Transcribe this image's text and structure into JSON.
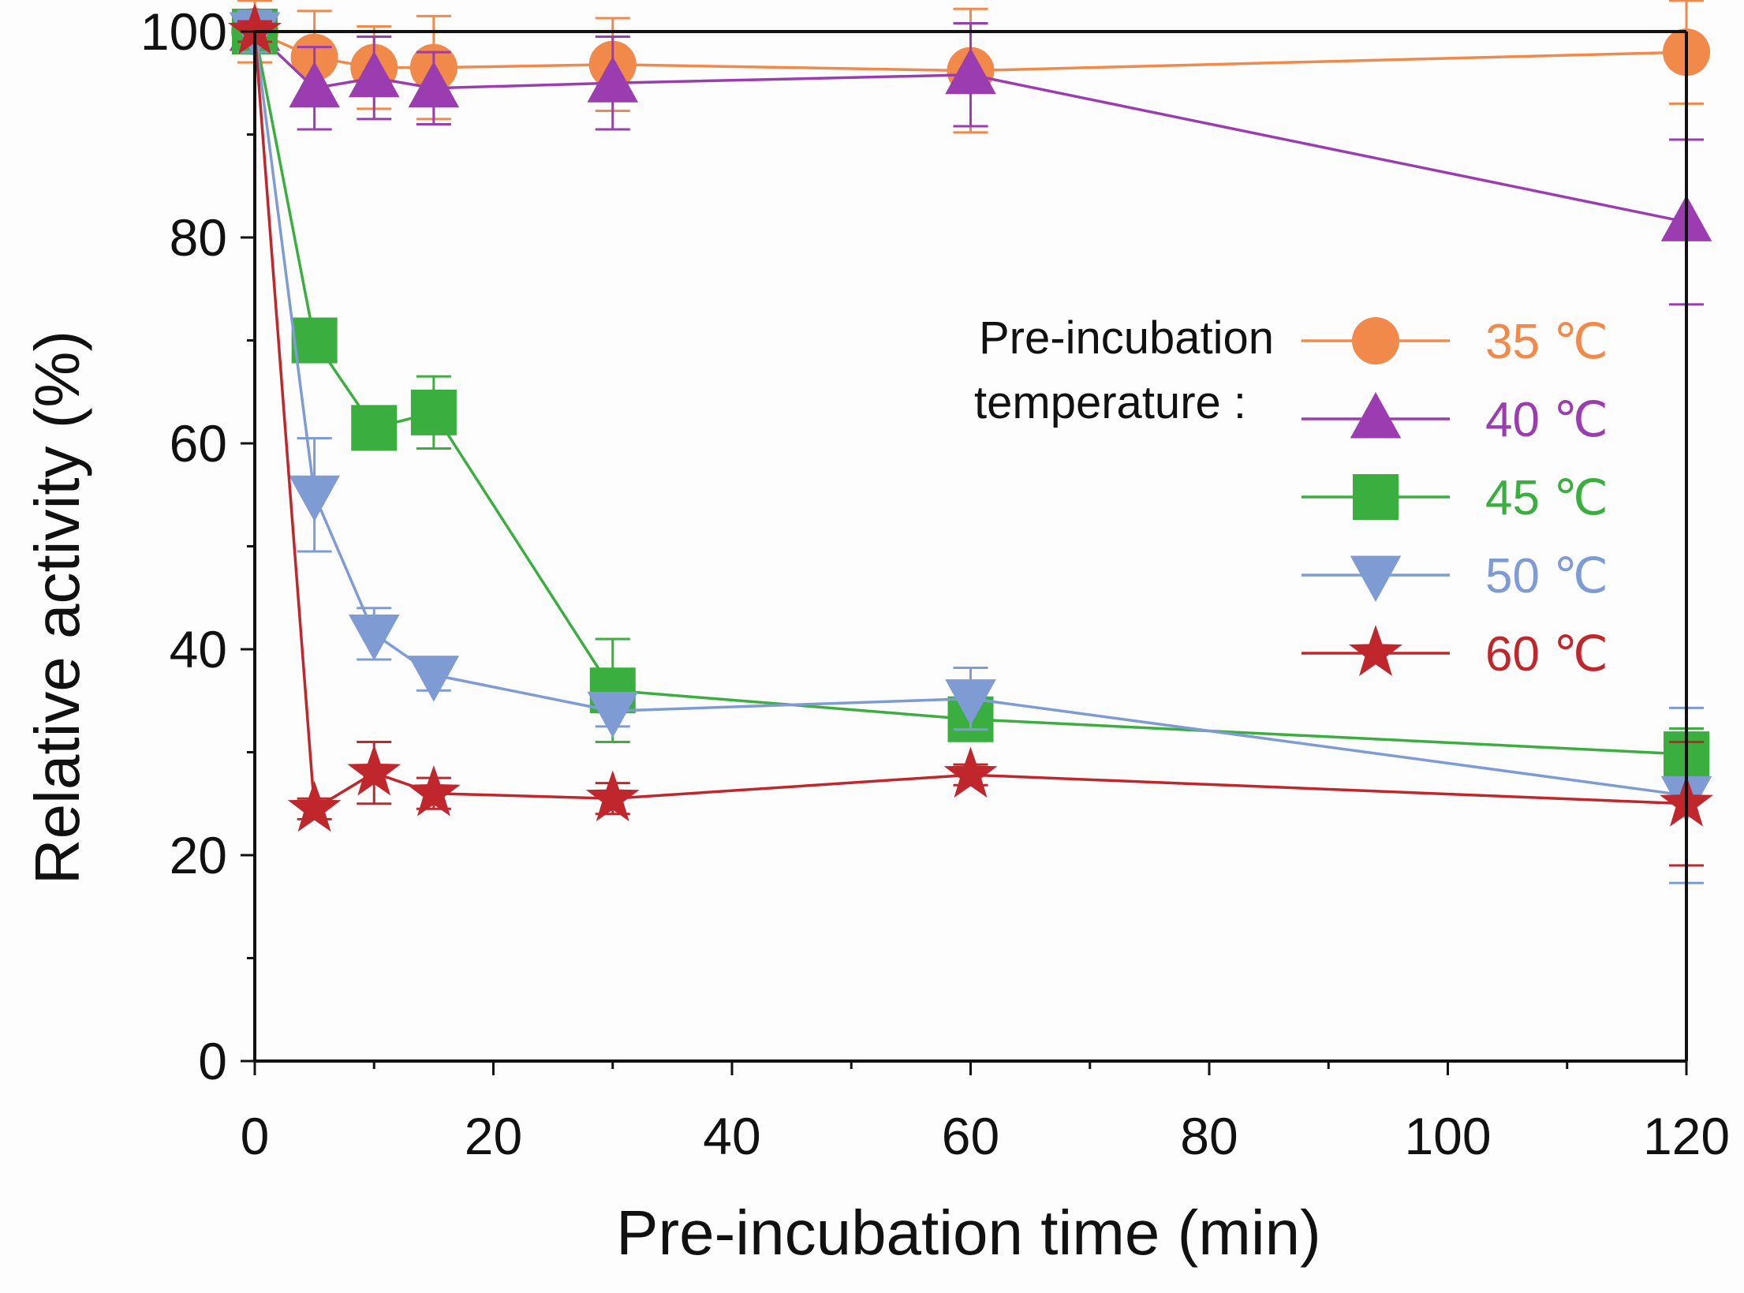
{
  "chart_data": {
    "type": "line",
    "title": "",
    "xlabel": "Pre-incubation time (min)",
    "ylabel": "Relative activity (%)",
    "xlim": [
      0,
      120
    ],
    "ylim": [
      0,
      100
    ],
    "xticks": [
      0,
      20,
      40,
      60,
      80,
      100,
      120
    ],
    "yticks": [
      0,
      20,
      40,
      60,
      80,
      100
    ],
    "x": [
      0,
      5,
      10,
      15,
      30,
      60,
      120
    ],
    "legend_title_line1": "Pre-incubation",
    "legend_title_line2": "temperature :",
    "legend_position": "center-right",
    "grid": false,
    "series": [
      {
        "name": "35 ℃",
        "marker": "circle",
        "color": "#f0894a",
        "values": [
          100,
          97.5,
          96.5,
          96.5,
          96.8,
          96.2,
          98
        ],
        "errors": [
          3,
          4.5,
          4,
          5,
          4.5,
          6,
          5
        ]
      },
      {
        "name": "40 ℃",
        "marker": "triangle-up",
        "color": "#9b3db0",
        "values": [
          100,
          94.5,
          95.5,
          94.5,
          95,
          95.8,
          81.5
        ],
        "errors": [
          2,
          4,
          4,
          3.5,
          4.5,
          5,
          8
        ]
      },
      {
        "name": "45 ℃",
        "marker": "square",
        "color": "#3aae3f",
        "values": [
          100,
          70,
          61.5,
          63,
          36,
          33.2,
          29.8
        ],
        "errors": [
          2,
          1.5,
          2,
          3.5,
          5,
          1.5,
          2.5
        ]
      },
      {
        "name": "50 ℃",
        "marker": "triangle-down",
        "color": "#7e9bd4",
        "values": [
          100,
          55,
          41.5,
          37.5,
          34,
          35.2,
          25.8
        ],
        "errors": [
          2,
          5.5,
          2.5,
          1.5,
          1.5,
          3,
          8.5
        ]
      },
      {
        "name": "60 ℃",
        "marker": "star",
        "color": "#c0272d",
        "values": [
          100,
          24.5,
          28,
          26,
          25.5,
          27.8,
          25
        ],
        "errors": [
          1,
          1,
          3,
          1.5,
          1.5,
          1,
          6
        ]
      }
    ]
  }
}
